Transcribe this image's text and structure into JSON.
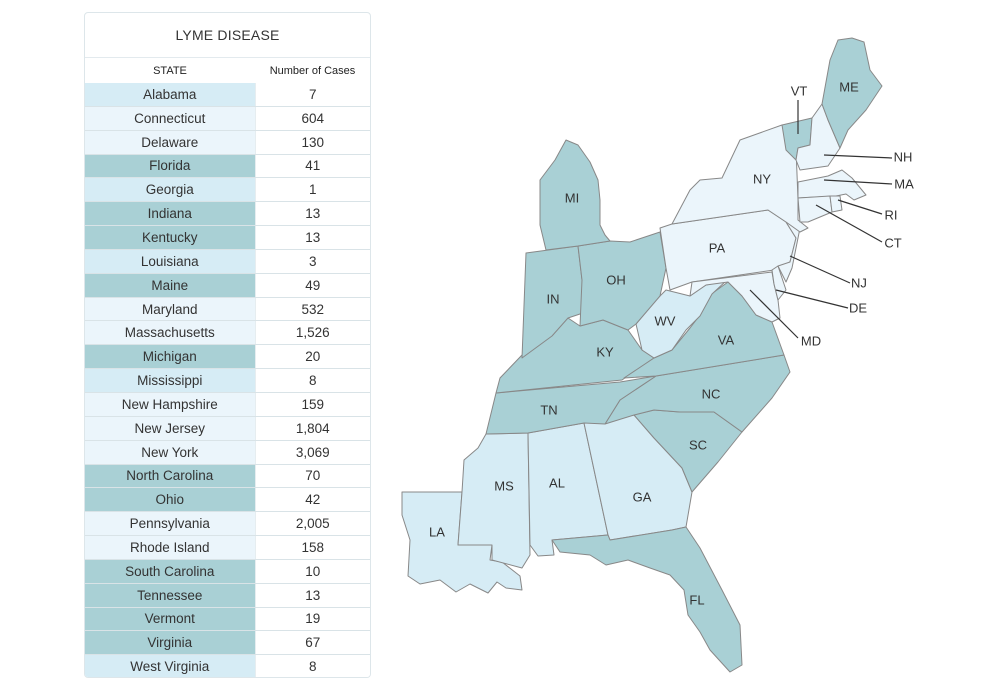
{
  "table": {
    "title": "LYME DISEASE",
    "headers": {
      "state": "STATE",
      "cases": "Number of Cases"
    },
    "rows": [
      {
        "state": "Alabama",
        "cases": "7",
        "tier": "low"
      },
      {
        "state": "Connecticut",
        "cases": "604",
        "tier": "mid"
      },
      {
        "state": "Delaware",
        "cases": "130",
        "tier": "mid"
      },
      {
        "state": "Florida",
        "cases": "41",
        "tier": "high"
      },
      {
        "state": "Georgia",
        "cases": "1",
        "tier": "low"
      },
      {
        "state": "Indiana",
        "cases": "13",
        "tier": "high"
      },
      {
        "state": "Kentucky",
        "cases": "13",
        "tier": "high"
      },
      {
        "state": "Louisiana",
        "cases": "3",
        "tier": "low"
      },
      {
        "state": "Maine",
        "cases": "49",
        "tier": "high"
      },
      {
        "state": "Maryland",
        "cases": "532",
        "tier": "mid"
      },
      {
        "state": "Massachusetts",
        "cases": "1,526",
        "tier": "mid"
      },
      {
        "state": "Michigan",
        "cases": "20",
        "tier": "high"
      },
      {
        "state": "Mississippi",
        "cases": "8",
        "tier": "low"
      },
      {
        "state": "New Hampshire",
        "cases": "159",
        "tier": "mid"
      },
      {
        "state": "New Jersey",
        "cases": "1,804",
        "tier": "mid"
      },
      {
        "state": "New York",
        "cases": "3,069",
        "tier": "mid"
      },
      {
        "state": "North Carolina",
        "cases": "70",
        "tier": "high"
      },
      {
        "state": "Ohio",
        "cases": "42",
        "tier": "high"
      },
      {
        "state": "Pennsylvania",
        "cases": "2,005",
        "tier": "mid"
      },
      {
        "state": "Rhode Island",
        "cases": "158",
        "tier": "mid"
      },
      {
        "state": "South Carolina",
        "cases": "10",
        "tier": "high"
      },
      {
        "state": "Tennessee",
        "cases": "13",
        "tier": "high"
      },
      {
        "state": "Vermont",
        "cases": "19",
        "tier": "high"
      },
      {
        "state": "Virginia",
        "cases": "67",
        "tier": "high"
      },
      {
        "state": "West Virginia",
        "cases": "8",
        "tier": "low"
      }
    ]
  },
  "colors": {
    "low": "#d6ecf5",
    "mid": "#ebf5fb",
    "high": "#a9d0d5",
    "border": "#888888",
    "label": "#333333"
  },
  "map": {
    "labels": {
      "ME": "ME",
      "VT": "VT",
      "NH": "NH",
      "MA": "MA",
      "RI": "RI",
      "CT": "CT",
      "NY": "NY",
      "PA": "PA",
      "NJ": "NJ",
      "DE": "DE",
      "MD": "MD",
      "MI": "MI",
      "OH": "OH",
      "IN": "IN",
      "WV": "WV",
      "VA": "VA",
      "KY": "KY",
      "NC": "NC",
      "TN": "TN",
      "SC": "SC",
      "MS": "MS",
      "AL": "AL",
      "GA": "GA",
      "LA": "LA",
      "FL": "FL"
    }
  }
}
